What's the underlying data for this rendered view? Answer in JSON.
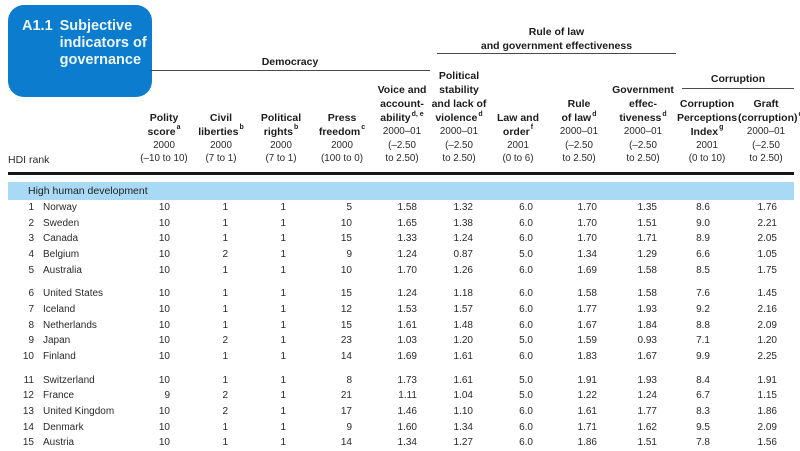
{
  "title": {
    "code": "A1.1",
    "text": "Subjective indicators of governance"
  },
  "groups": {
    "democracy": "Democracy",
    "rule_line1": "Rule of law",
    "rule_line2": "and government effectiveness",
    "corruption": "Corruption"
  },
  "hdi_rank_label": "HDI rank",
  "section": "High human development",
  "columns": [
    {
      "lines": [
        "Polity",
        "score"
      ],
      "sup": "a",
      "year": "2000",
      "range": [
        "(–10 to 10)"
      ]
    },
    {
      "lines": [
        "Civil",
        "liberties"
      ],
      "sup": "b",
      "year": "2000",
      "range": [
        "(7 to 1)"
      ]
    },
    {
      "lines": [
        "Political",
        "rights"
      ],
      "sup": "b",
      "year": "2000",
      "range": [
        "(7 to 1)"
      ]
    },
    {
      "lines": [
        "Press",
        "freedom"
      ],
      "sup": "c",
      "year": "2000",
      "range": [
        "(100 to 0)"
      ]
    },
    {
      "lines": [
        "Voice and",
        "account-",
        "ability"
      ],
      "sup": "d, e",
      "year": "2000–01",
      "range": [
        "(–2.50",
        "to 2.50)"
      ]
    },
    {
      "lines": [
        "Political",
        "stability",
        "and lack of",
        "violence"
      ],
      "sup": "d",
      "year": "2000–01",
      "range": [
        "(–2.50",
        "to 2.50)"
      ]
    },
    {
      "lines": [
        "Law and",
        "order"
      ],
      "sup": "f",
      "year": "2001",
      "range": [
        "(0 to 6)"
      ]
    },
    {
      "lines": [
        "Rule",
        "of law"
      ],
      "sup": "d",
      "year": "2000–01",
      "range": [
        "(–2.50",
        "to 2.50)"
      ]
    },
    {
      "lines": [
        "Government",
        "effec-",
        "tiveness"
      ],
      "sup": "d",
      "year": "2000–01",
      "range": [
        "(–2.50",
        "to 2.50)"
      ]
    },
    {
      "lines": [
        "Corruption",
        "Perceptions",
        "Index"
      ],
      "sup": "g",
      "year": "2001",
      "range": [
        "(0 to 10)"
      ]
    },
    {
      "lines": [
        "Graft",
        "(corruption)"
      ],
      "sup": "d",
      "year": "2000–01",
      "range": [
        "(–2.50",
        "to 2.50)"
      ]
    }
  ],
  "rows": [
    {
      "rank": "1",
      "country": "Norway",
      "values": [
        "10",
        "1",
        "1",
        "5",
        "1.58",
        "1.32",
        "6.0",
        "1.70",
        "1.35",
        "8.6",
        "1.76"
      ]
    },
    {
      "rank": "2",
      "country": "Sweden",
      "values": [
        "10",
        "1",
        "1",
        "10",
        "1.65",
        "1.38",
        "6.0",
        "1.70",
        "1.51",
        "9.0",
        "2.21"
      ]
    },
    {
      "rank": "3",
      "country": "Canada",
      "values": [
        "10",
        "1",
        "1",
        "15",
        "1.33",
        "1.24",
        "6.0",
        "1.70",
        "1.71",
        "8.9",
        "2.05"
      ]
    },
    {
      "rank": "4",
      "country": "Belgium",
      "values": [
        "10",
        "2",
        "1",
        "9",
        "1.24",
        "0.87",
        "5.0",
        "1.34",
        "1.29",
        "6.6",
        "1.05"
      ]
    },
    {
      "rank": "5",
      "country": "Australia",
      "values": [
        "10",
        "1",
        "1",
        "10",
        "1.70",
        "1.26",
        "6.0",
        "1.69",
        "1.58",
        "8.5",
        "1.75"
      ]
    },
    {
      "rank": "6",
      "country": "United States",
      "values": [
        "10",
        "1",
        "1",
        "15",
        "1.24",
        "1.18",
        "6.0",
        "1.58",
        "1.58",
        "7.6",
        "1.45"
      ]
    },
    {
      "rank": "7",
      "country": "Iceland",
      "values": [
        "10",
        "1",
        "1",
        "12",
        "1.53",
        "1.57",
        "6.0",
        "1.77",
        "1.93",
        "9.2",
        "2.16"
      ]
    },
    {
      "rank": "8",
      "country": "Netherlands",
      "values": [
        "10",
        "1",
        "1",
        "15",
        "1.61",
        "1.48",
        "6.0",
        "1.67",
        "1.84",
        "8.8",
        "2.09"
      ]
    },
    {
      "rank": "9",
      "country": "Japan",
      "values": [
        "10",
        "2",
        "1",
        "23",
        "1.03",
        "1.20",
        "5.0",
        "1.59",
        "0.93",
        "7.1",
        "1.20"
      ]
    },
    {
      "rank": "10",
      "country": "Finland",
      "values": [
        "10",
        "1",
        "1",
        "14",
        "1.69",
        "1.61",
        "6.0",
        "1.83",
        "1.67",
        "9.9",
        "2.25"
      ]
    },
    {
      "rank": "11",
      "country": "Switzerland",
      "values": [
        "10",
        "1",
        "1",
        "8",
        "1.73",
        "1.61",
        "5.0",
        "1.91",
        "1.93",
        "8.4",
        "1.91"
      ]
    },
    {
      "rank": "12",
      "country": "France",
      "values": [
        "9",
        "2",
        "1",
        "21",
        "1.11",
        "1.04",
        "5.0",
        "1.22",
        "1.24",
        "6.7",
        "1.15"
      ]
    },
    {
      "rank": "13",
      "country": "United Kingdom",
      "values": [
        "10",
        "2",
        "1",
        "17",
        "1.46",
        "1.10",
        "6.0",
        "1.61",
        "1.77",
        "8.3",
        "1.86"
      ]
    },
    {
      "rank": "14",
      "country": "Denmark",
      "values": [
        "10",
        "1",
        "1",
        "9",
        "1.60",
        "1.34",
        "6.0",
        "1.71",
        "1.62",
        "9.5",
        "2.09"
      ]
    },
    {
      "rank": "15",
      "country": "Austria",
      "values": [
        "10",
        "1",
        "1",
        "14",
        "1.34",
        "1.27",
        "6.0",
        "1.86",
        "1.51",
        "7.8",
        "1.56"
      ]
    }
  ],
  "colors": {
    "accent": "#0b7cce",
    "band": "#a9daf5"
  }
}
